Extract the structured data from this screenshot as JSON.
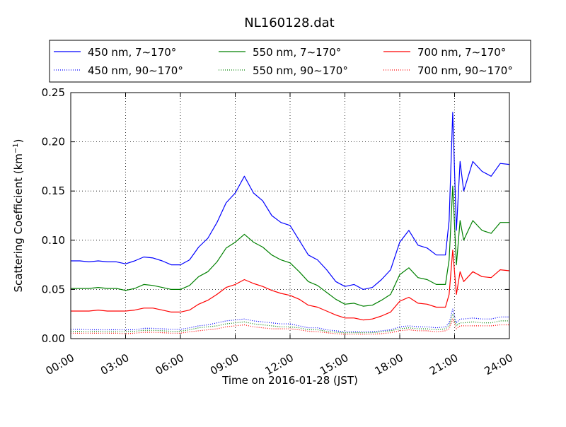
{
  "chart_data": {
    "type": "line",
    "title": "NL160128.dat",
    "xlabel": "Time on 2016-01-28 (JST)",
    "ylabel": "Scattering Coefficient (km",
    "ylabel_sup": "−1",
    "ylabel_close": ")",
    "xlim": [
      0,
      24
    ],
    "ylim": [
      0,
      0.25
    ],
    "grid": true,
    "legend_position": "top",
    "x_ticks": [
      0,
      3,
      6,
      9,
      12,
      15,
      18,
      21,
      24
    ],
    "x_tick_labels": [
      "00:00",
      "03:00",
      "06:00",
      "09:00",
      "12:00",
      "15:00",
      "18:00",
      "21:00",
      "24:00"
    ],
    "y_ticks": [
      0,
      0.05,
      0.1,
      0.15,
      0.2,
      0.25
    ],
    "y_tick_labels": [
      "0.00",
      "0.05",
      "0.10",
      "0.15",
      "0.20",
      "0.25"
    ],
    "x": [
      0,
      0.5,
      1,
      1.5,
      2,
      2.5,
      3,
      3.5,
      4,
      4.5,
      5,
      5.5,
      6,
      6.5,
      7,
      7.5,
      8,
      8.5,
      9,
      9.5,
      10,
      10.5,
      11,
      11.5,
      12,
      12.5,
      13,
      13.5,
      14,
      14.5,
      15,
      15.5,
      16,
      16.5,
      17,
      17.5,
      18,
      18.5,
      19,
      19.5,
      20,
      20.5,
      20.7,
      20.9,
      21.1,
      21.3,
      21.5,
      22,
      22.5,
      23,
      23.5,
      24
    ],
    "series": [
      {
        "name": "450 nm, 7∼170°",
        "color": "#0000ff",
        "style": "solid",
        "values": [
          0.079,
          0.079,
          0.078,
          0.079,
          0.078,
          0.078,
          0.076,
          0.079,
          0.083,
          0.082,
          0.079,
          0.075,
          0.075,
          0.08,
          0.093,
          0.102,
          0.118,
          0.138,
          0.148,
          0.165,
          0.148,
          0.14,
          0.125,
          0.118,
          0.115,
          0.1,
          0.085,
          0.08,
          0.07,
          0.058,
          0.053,
          0.055,
          0.05,
          0.052,
          0.06,
          0.07,
          0.098,
          0.11,
          0.095,
          0.092,
          0.085,
          0.085,
          0.12,
          0.23,
          0.11,
          0.18,
          0.15,
          0.18,
          0.17,
          0.165,
          0.178,
          0.177
        ]
      },
      {
        "name": "450 nm, 90∼170°",
        "color": "#0000ff",
        "style": "dotted",
        "values": [
          0.0095,
          0.0095,
          0.009,
          0.009,
          0.009,
          0.009,
          0.009,
          0.009,
          0.0105,
          0.0105,
          0.01,
          0.0095,
          0.0095,
          0.011,
          0.013,
          0.014,
          0.016,
          0.018,
          0.019,
          0.02,
          0.018,
          0.017,
          0.016,
          0.015,
          0.015,
          0.013,
          0.011,
          0.011,
          0.009,
          0.008,
          0.007,
          0.007,
          0.007,
          0.007,
          0.008,
          0.009,
          0.012,
          0.013,
          0.012,
          0.012,
          0.011,
          0.012,
          0.016,
          0.03,
          0.016,
          0.02,
          0.02,
          0.021,
          0.02,
          0.02,
          0.022,
          0.022
        ]
      },
      {
        "name": "550 nm, 7∼170°",
        "color": "#008000",
        "style": "solid",
        "values": [
          0.051,
          0.051,
          0.051,
          0.052,
          0.051,
          0.051,
          0.049,
          0.051,
          0.055,
          0.054,
          0.052,
          0.05,
          0.05,
          0.054,
          0.063,
          0.068,
          0.078,
          0.092,
          0.098,
          0.106,
          0.098,
          0.093,
          0.085,
          0.08,
          0.077,
          0.068,
          0.058,
          0.054,
          0.047,
          0.04,
          0.035,
          0.036,
          0.033,
          0.034,
          0.039,
          0.045,
          0.065,
          0.072,
          0.062,
          0.06,
          0.055,
          0.055,
          0.08,
          0.155,
          0.075,
          0.12,
          0.1,
          0.12,
          0.11,
          0.107,
          0.118,
          0.118
        ]
      },
      {
        "name": "550 nm, 90∼170°",
        "color": "#008000",
        "style": "dotted",
        "values": [
          0.0075,
          0.0075,
          0.007,
          0.0075,
          0.007,
          0.007,
          0.007,
          0.0075,
          0.0085,
          0.0085,
          0.008,
          0.0075,
          0.0075,
          0.009,
          0.011,
          0.012,
          0.013,
          0.015,
          0.016,
          0.017,
          0.015,
          0.014,
          0.013,
          0.012,
          0.012,
          0.011,
          0.009,
          0.009,
          0.0075,
          0.0065,
          0.006,
          0.006,
          0.006,
          0.006,
          0.007,
          0.008,
          0.01,
          0.011,
          0.01,
          0.01,
          0.009,
          0.01,
          0.013,
          0.025,
          0.013,
          0.016,
          0.016,
          0.017,
          0.016,
          0.016,
          0.018,
          0.018
        ]
      },
      {
        "name": "700 nm, 7∼170°",
        "color": "#ff0000",
        "style": "solid",
        "values": [
          0.028,
          0.028,
          0.028,
          0.029,
          0.028,
          0.028,
          0.028,
          0.029,
          0.031,
          0.031,
          0.029,
          0.027,
          0.027,
          0.029,
          0.035,
          0.039,
          0.045,
          0.052,
          0.055,
          0.06,
          0.056,
          0.053,
          0.049,
          0.046,
          0.044,
          0.04,
          0.034,
          0.032,
          0.028,
          0.024,
          0.021,
          0.021,
          0.019,
          0.02,
          0.023,
          0.027,
          0.038,
          0.042,
          0.036,
          0.035,
          0.032,
          0.032,
          0.045,
          0.09,
          0.045,
          0.068,
          0.058,
          0.068,
          0.063,
          0.062,
          0.07,
          0.069
        ]
      },
      {
        "name": "700 nm, 90∼170°",
        "color": "#ff0000",
        "style": "dotted",
        "values": [
          0.0055,
          0.0055,
          0.0055,
          0.0055,
          0.0055,
          0.0055,
          0.005,
          0.0055,
          0.0065,
          0.0065,
          0.006,
          0.0055,
          0.0055,
          0.007,
          0.008,
          0.009,
          0.01,
          0.012,
          0.013,
          0.014,
          0.012,
          0.011,
          0.01,
          0.01,
          0.01,
          0.009,
          0.0075,
          0.007,
          0.006,
          0.005,
          0.0045,
          0.0045,
          0.0045,
          0.0045,
          0.005,
          0.006,
          0.008,
          0.009,
          0.008,
          0.008,
          0.007,
          0.008,
          0.01,
          0.02,
          0.01,
          0.013,
          0.013,
          0.013,
          0.013,
          0.013,
          0.014,
          0.014
        ]
      }
    ]
  }
}
